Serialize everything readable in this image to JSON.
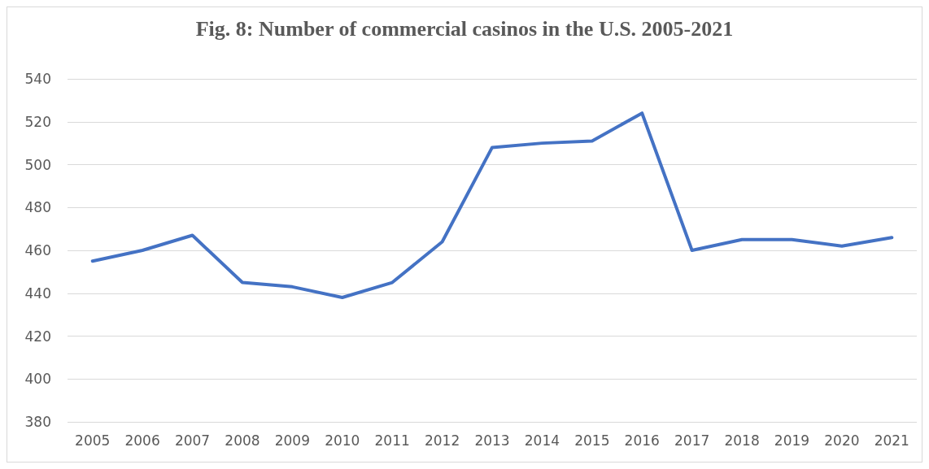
{
  "chart_data": {
    "type": "line",
    "title": "Fig. 8: Number of commercial casinos in the U.S. 2005-2021",
    "categories": [
      "2005",
      "2006",
      "2007",
      "2008",
      "2009",
      "2010",
      "2011",
      "2012",
      "2013",
      "2014",
      "2015",
      "2016",
      "2017",
      "2018",
      "2019",
      "2020",
      "2021"
    ],
    "values": [
      455,
      460,
      467,
      445,
      443,
      438,
      445,
      464,
      508,
      510,
      511,
      524,
      460,
      465,
      465,
      462,
      466
    ],
    "color": "#4472c4",
    "ylim": [
      380,
      540
    ],
    "yticks": [
      380,
      400,
      420,
      440,
      460,
      480,
      500,
      520,
      540
    ],
    "grid": "y",
    "marker": "none",
    "line_style": "solid"
  }
}
